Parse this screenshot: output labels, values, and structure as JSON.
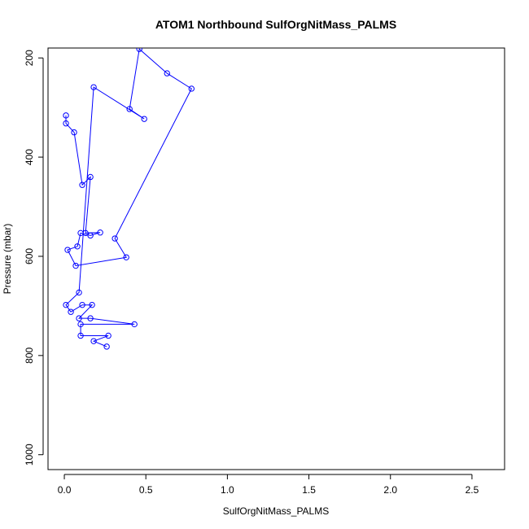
{
  "chart_data": {
    "type": "line",
    "title": "ATOM1 Northbound SulfOrgNitMass_PALMS",
    "xlabel": "SulfOrgNitMass_PALMS",
    "ylabel": "Pressure (mbar)",
    "xlim": [
      -0.1,
      2.7
    ],
    "ylim": [
      1030,
      180
    ],
    "y_reversed": true,
    "xticks": [
      0.0,
      0.5,
      1.0,
      1.5,
      2.0,
      2.5
    ],
    "xtick_labels": [
      "0.0",
      "0.5",
      "1.0",
      "1.5",
      "2.0",
      "2.5"
    ],
    "yticks": [
      200,
      400,
      600,
      800,
      1000
    ],
    "ytick_labels": [
      "200",
      "400",
      "600",
      "800",
      "1000"
    ],
    "grid": false,
    "line_color": "#0000ff",
    "marker": "open-circle",
    "series": [
      {
        "points": [
          {
            "x": 0.01,
            "y": 316
          },
          {
            "x": 0.01,
            "y": 332
          },
          {
            "x": 0.06,
            "y": 350
          },
          {
            "x": 0.11,
            "y": 456
          },
          {
            "x": 0.16,
            "y": 440
          },
          {
            "x": 0.13,
            "y": 553
          },
          {
            "x": 0.22,
            "y": 552
          },
          {
            "x": 0.16,
            "y": 558
          },
          {
            "x": 0.1,
            "y": 553
          },
          {
            "x": 0.08,
            "y": 580
          },
          {
            "x": 0.02,
            "y": 587
          },
          {
            "x": 0.07,
            "y": 619
          },
          {
            "x": 0.38,
            "y": 602
          },
          {
            "x": 0.31,
            "y": 564
          },
          {
            "x": 0.78,
            "y": 262
          },
          {
            "x": 0.63,
            "y": 231
          },
          {
            "x": 0.46,
            "y": 182
          },
          {
            "x": 0.4,
            "y": 303
          },
          {
            "x": 0.49,
            "y": 323
          },
          {
            "x": 0.18,
            "y": 259
          },
          {
            "x": 0.09,
            "y": 673
          },
          {
            "x": 0.01,
            "y": 698
          },
          {
            "x": 0.04,
            "y": 712
          },
          {
            "x": 0.11,
            "y": 698
          },
          {
            "x": 0.17,
            "y": 698
          },
          {
            "x": 0.09,
            "y": 725
          },
          {
            "x": 0.16,
            "y": 725
          },
          {
            "x": 0.43,
            "y": 737
          },
          {
            "x": 0.1,
            "y": 737
          },
          {
            "x": 0.1,
            "y": 760
          },
          {
            "x": 0.27,
            "y": 760
          },
          {
            "x": 0.18,
            "y": 771
          },
          {
            "x": 0.26,
            "y": 782
          }
        ]
      }
    ]
  }
}
